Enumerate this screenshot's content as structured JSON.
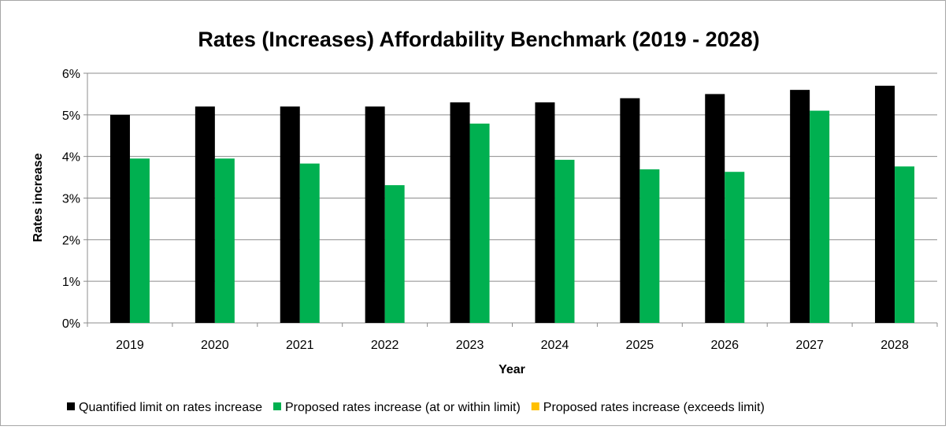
{
  "chart_data": {
    "type": "bar",
    "title": "Rates (Increases) Affordability Benchmark (2019 - 2028)",
    "xlabel": "Year",
    "ylabel": "Rates increase",
    "categories": [
      "2019",
      "2020",
      "2021",
      "2022",
      "2023",
      "2024",
      "2025",
      "2026",
      "2027",
      "2028"
    ],
    "ylim": [
      0,
      6
    ],
    "yticks": [
      "0%",
      "1%",
      "2%",
      "3%",
      "4%",
      "5%",
      "6%"
    ],
    "grid": true,
    "legend_position": "bottom",
    "series": [
      {
        "name": "Quantified limit on rates increase",
        "color": "#000000",
        "values": [
          5.0,
          5.2,
          5.2,
          5.2,
          5.3,
          5.3,
          5.4,
          5.5,
          5.6,
          5.7
        ]
      },
      {
        "name": "Proposed rates increase (at or within limit)",
        "color": "#00b050",
        "values": [
          3.95,
          3.95,
          3.83,
          3.31,
          4.79,
          3.92,
          3.69,
          3.63,
          5.1,
          3.76
        ]
      },
      {
        "name": "Proposed rates increase (exceeds limit)",
        "color": "#ffc000",
        "values": [
          null,
          null,
          null,
          null,
          null,
          null,
          null,
          null,
          null,
          null
        ]
      }
    ]
  }
}
